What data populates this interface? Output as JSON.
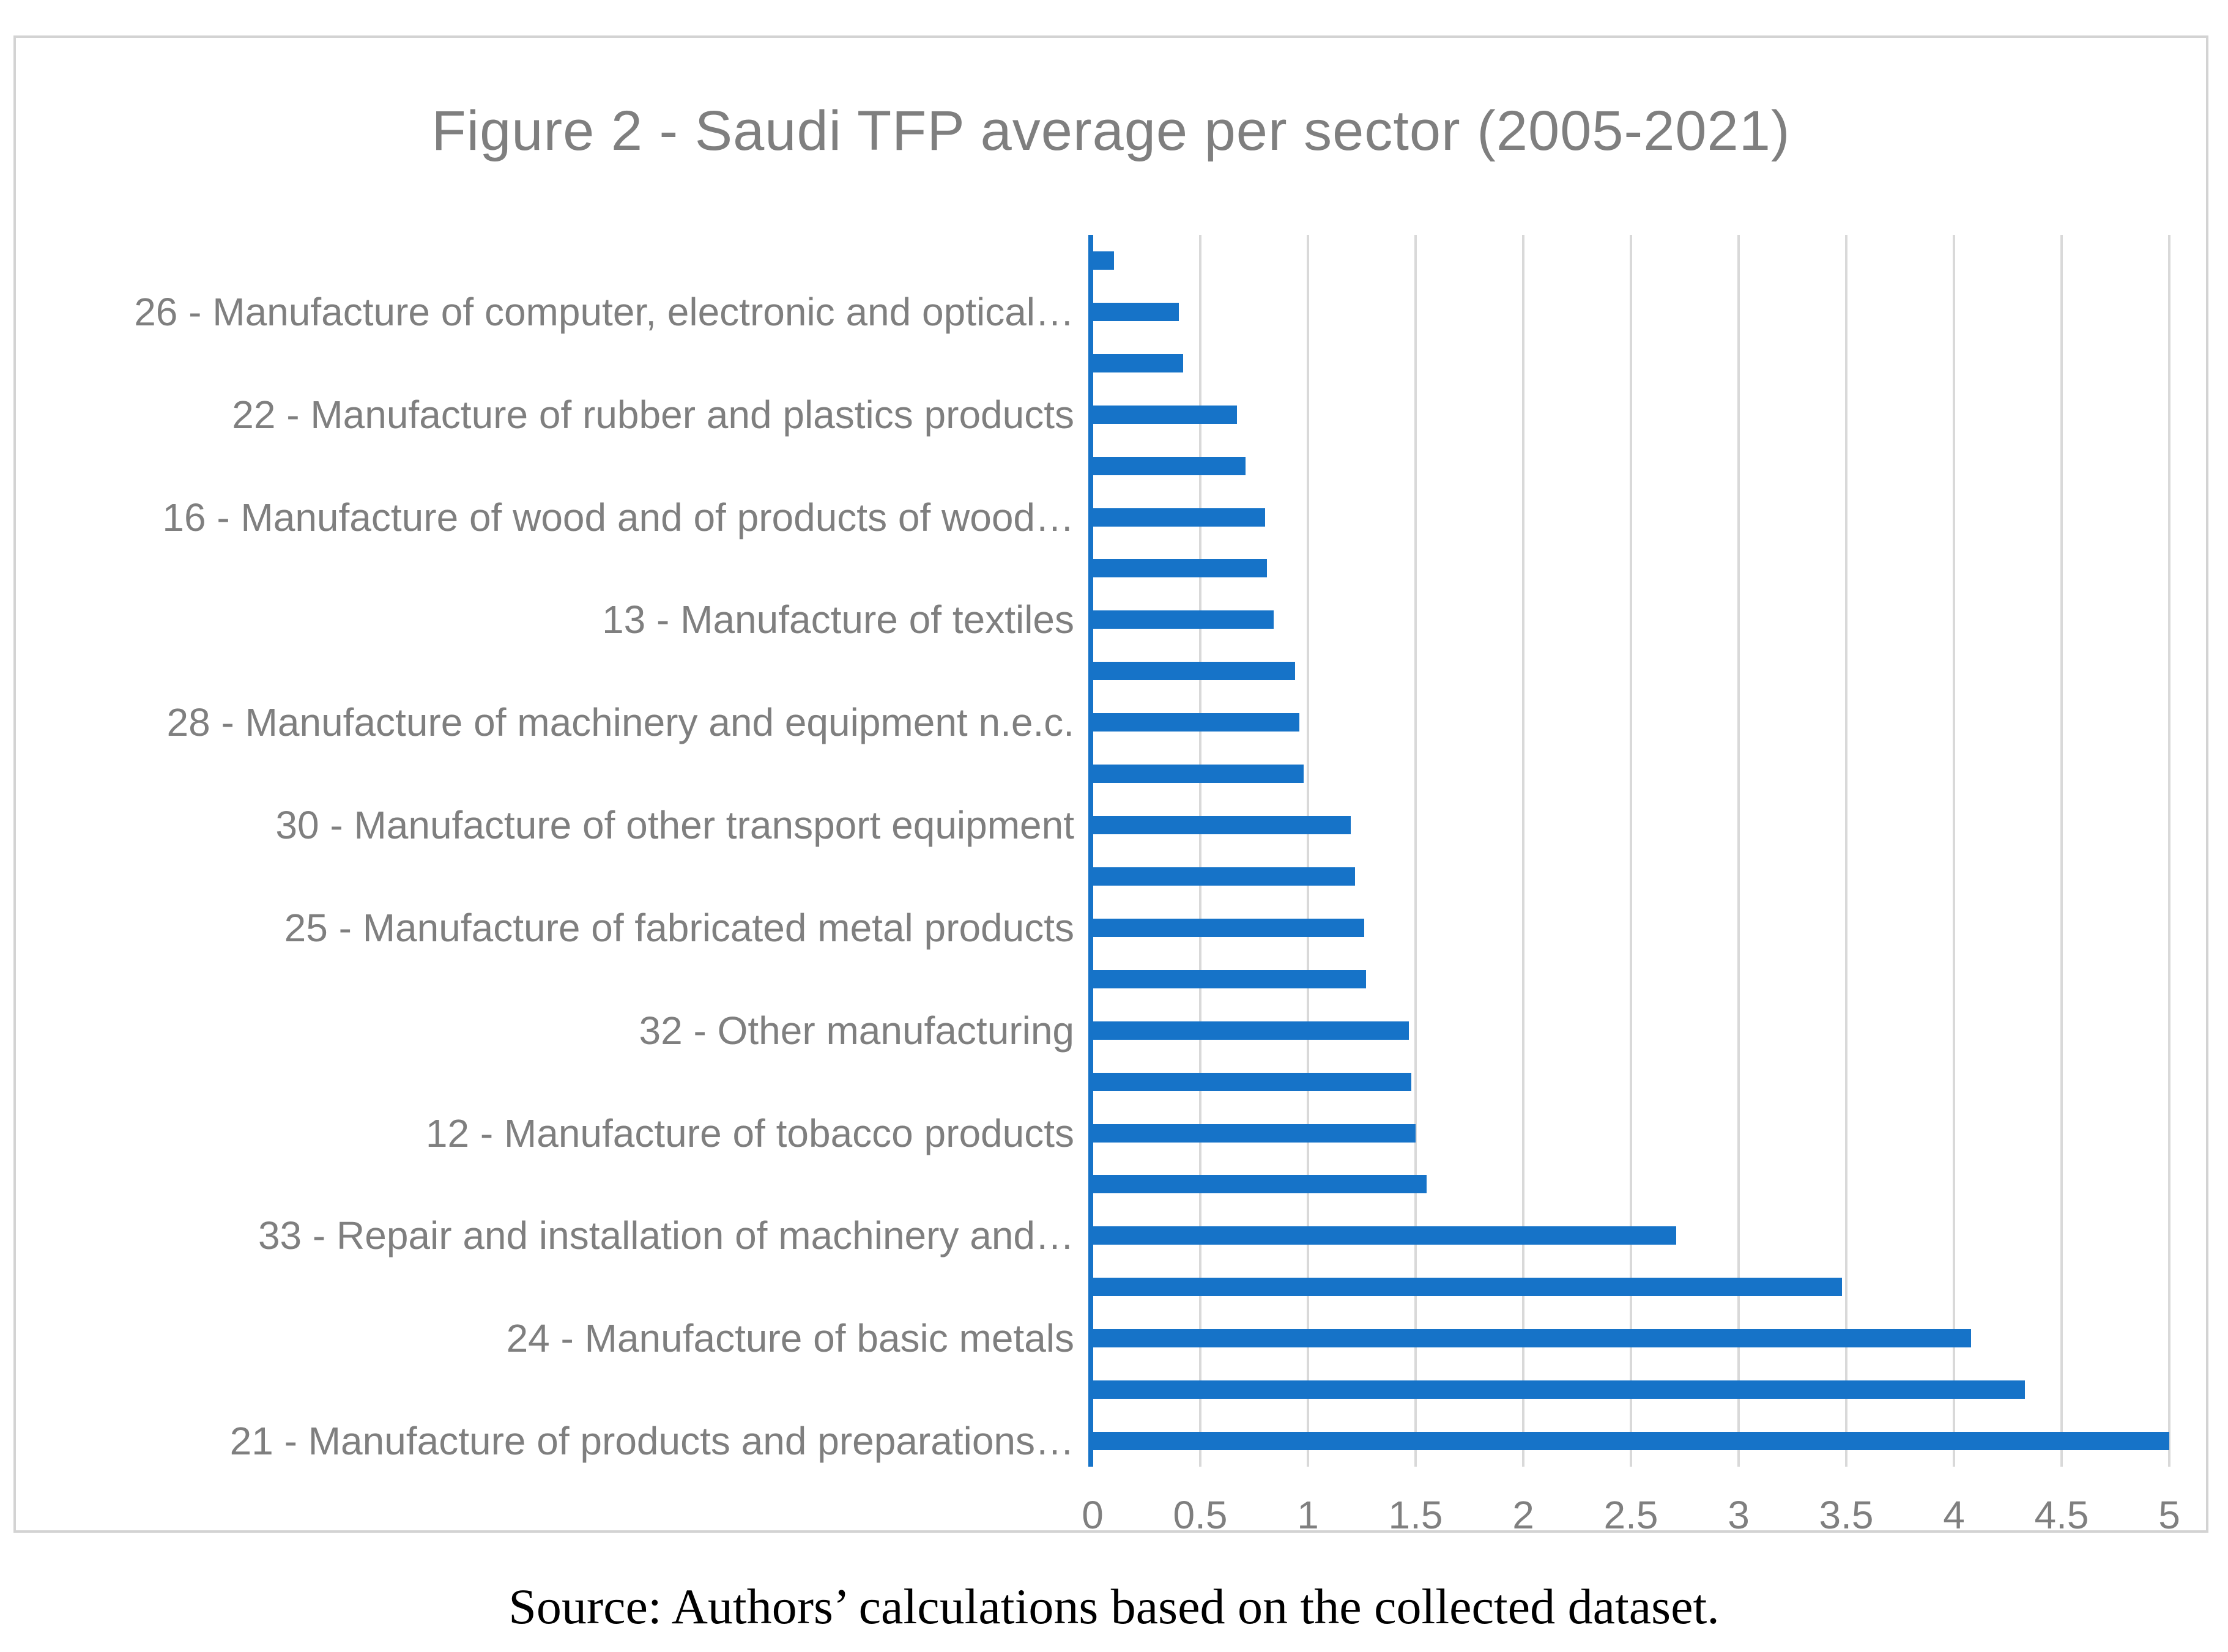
{
  "figure": {
    "title": "Figure 2 - Saudi TFP average per sector (2005-2021)",
    "source_caption": "Source: Authors’ calculations based on the collected dataset."
  },
  "colors": {
    "bar": "#1673C8",
    "axis_line": "#1673C8",
    "gridline": "#D9D9D9",
    "figure_border": "#D3D3D3",
    "chart_text": "#7F7F7F",
    "caption_text": "#000000",
    "background": "#FFFFFF"
  },
  "chart_data": {
    "type": "bar",
    "orientation": "horizontal",
    "title": "Figure 2 - Saudi TFP average per sector (2005-2021)",
    "xlabel": "",
    "ylabel": "",
    "xlim": [
      0,
      5
    ],
    "grid": "vertical",
    "legend": "none",
    "x_ticks": [
      0,
      0.5,
      1,
      1.5,
      2,
      2.5,
      3,
      3.5,
      4,
      4.5,
      5
    ],
    "x_tick_labels": [
      "0",
      "0.5",
      "1",
      "1.5",
      "2",
      "2.5",
      "3",
      "3.5",
      "4",
      "4.5",
      "5"
    ],
    "categories": [
      "",
      "26 - Manufacture of computer, electronic and optical…",
      "",
      "22 - Manufacture of rubber and plastics products",
      "",
      "16 - Manufacture of wood and of products of wood…",
      "",
      "13 - Manufacture of textiles",
      "",
      "28 - Manufacture of machinery and equipment n.e.c.",
      "",
      "30 - Manufacture of other transport equipment",
      "",
      "25 - Manufacture of fabricated metal products",
      "",
      "32 - Other manufacturing",
      "",
      "12 - Manufacture of tobacco products",
      "",
      "33 - Repair and installation of machinery and…",
      "",
      "24 - Manufacture of basic metals",
      "",
      "21 - Manufacture of products and preparations…"
    ],
    "values": [
      0.1,
      0.4,
      0.42,
      0.67,
      0.71,
      0.8,
      0.81,
      0.84,
      0.94,
      0.96,
      0.98,
      1.2,
      1.22,
      1.26,
      1.27,
      1.47,
      1.48,
      1.5,
      1.55,
      2.71,
      3.48,
      4.08,
      4.33,
      5.0
    ]
  }
}
